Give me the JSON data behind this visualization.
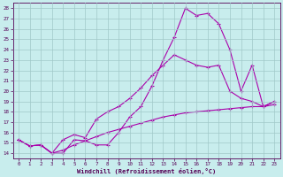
{
  "xlabel": "Windchill (Refroidissement éolien,°C)",
  "xlim": [
    -0.5,
    23.5
  ],
  "ylim": [
    13.5,
    28.5
  ],
  "xticks": [
    0,
    1,
    2,
    3,
    4,
    5,
    6,
    7,
    8,
    9,
    10,
    11,
    12,
    13,
    14,
    15,
    16,
    17,
    18,
    19,
    20,
    21,
    22,
    23
  ],
  "yticks": [
    14,
    15,
    16,
    17,
    18,
    19,
    20,
    21,
    22,
    23,
    24,
    25,
    26,
    27,
    28
  ],
  "bg_color": "#c8eded",
  "grid_color": "#a0c8c8",
  "line_color": "#aa00aa",
  "line1_x": [
    0,
    1,
    2,
    3,
    4,
    5,
    6,
    7,
    8,
    9,
    10,
    11,
    12,
    13,
    14,
    15,
    16,
    17,
    18,
    19,
    20,
    21,
    22,
    23
  ],
  "line1_y": [
    15.3,
    14.7,
    14.8,
    14.0,
    14.0,
    15.3,
    15.2,
    14.8,
    14.8,
    16.0,
    17.5,
    18.5,
    20.5,
    23.0,
    25.2,
    28.0,
    27.3,
    27.5,
    26.5,
    24.0,
    20.0,
    22.5,
    18.5,
    19.0
  ],
  "line2_x": [
    0,
    1,
    2,
    3,
    4,
    5,
    6,
    7,
    8,
    9,
    10,
    11,
    12,
    13,
    14,
    15,
    16,
    17,
    18,
    19,
    20,
    21,
    22,
    23
  ],
  "line2_y": [
    15.3,
    14.7,
    14.8,
    14.0,
    15.3,
    15.8,
    15.5,
    17.3,
    18.0,
    18.5,
    19.3,
    20.3,
    21.5,
    22.5,
    23.5,
    23.0,
    22.5,
    22.3,
    22.5,
    20.0,
    19.3,
    19.0,
    18.5,
    19.0
  ],
  "line3_x": [
    0,
    1,
    2,
    3,
    4,
    5,
    6,
    7,
    8,
    9,
    10,
    11,
    12,
    13,
    14,
    15,
    16,
    17,
    18,
    19,
    20,
    21,
    22,
    23
  ],
  "line3_y": [
    15.3,
    14.7,
    14.8,
    14.0,
    14.3,
    14.8,
    15.2,
    15.6,
    16.0,
    16.3,
    16.6,
    16.9,
    17.2,
    17.5,
    17.7,
    17.9,
    18.0,
    18.1,
    18.2,
    18.3,
    18.4,
    18.5,
    18.5,
    18.7
  ]
}
